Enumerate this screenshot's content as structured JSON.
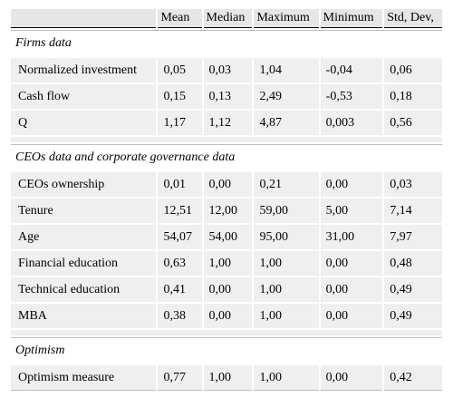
{
  "table": {
    "columns": [
      "",
      "Mean",
      "Median",
      "Maximum",
      "Minimum",
      "Std, Dev,"
    ],
    "sections": [
      {
        "title": "Firms data",
        "rows": [
          {
            "label": "Normalized investment",
            "values": [
              "0,05",
              "0,03",
              "1,04",
              "-0,04",
              "0,06"
            ]
          },
          {
            "label": "Cash flow",
            "values": [
              "0,15",
              "0,13",
              "2,49",
              "-0,53",
              "0,18"
            ]
          },
          {
            "label": "Q",
            "values": [
              "1,17",
              "1,12",
              "4,87",
              "0,003",
              "0,56"
            ]
          }
        ]
      },
      {
        "title": "CEOs data and corporate governance data",
        "rows": [
          {
            "label": "CEOs ownership",
            "values": [
              "0,01",
              "0,00",
              "0,21",
              "0,00",
              "0,03"
            ]
          },
          {
            "label": "Tenure",
            "values": [
              "12,51",
              "12,00",
              "59,00",
              "5,00",
              "7,14"
            ]
          },
          {
            "label": "Age",
            "values": [
              "54,07",
              "54,00",
              "95,00",
              "31,00",
              "7,97"
            ]
          },
          {
            "label": "Financial education",
            "values": [
              "0,63",
              "1,00",
              "1,00",
              "0,00",
              "0,48"
            ]
          },
          {
            "label": "Technical education",
            "values": [
              "0,41",
              "0,00",
              "1,00",
              "0,00",
              "0,49"
            ]
          },
          {
            "label": "MBA",
            "values": [
              "0,38",
              "0,00",
              "1,00",
              "0,00",
              "0,49"
            ]
          }
        ]
      },
      {
        "title": "Optimism",
        "rows": [
          {
            "label": "Optimism measure",
            "values": [
              "0,77",
              "1,00",
              "1,00",
              "0,00",
              "0,42"
            ]
          }
        ]
      }
    ]
  }
}
